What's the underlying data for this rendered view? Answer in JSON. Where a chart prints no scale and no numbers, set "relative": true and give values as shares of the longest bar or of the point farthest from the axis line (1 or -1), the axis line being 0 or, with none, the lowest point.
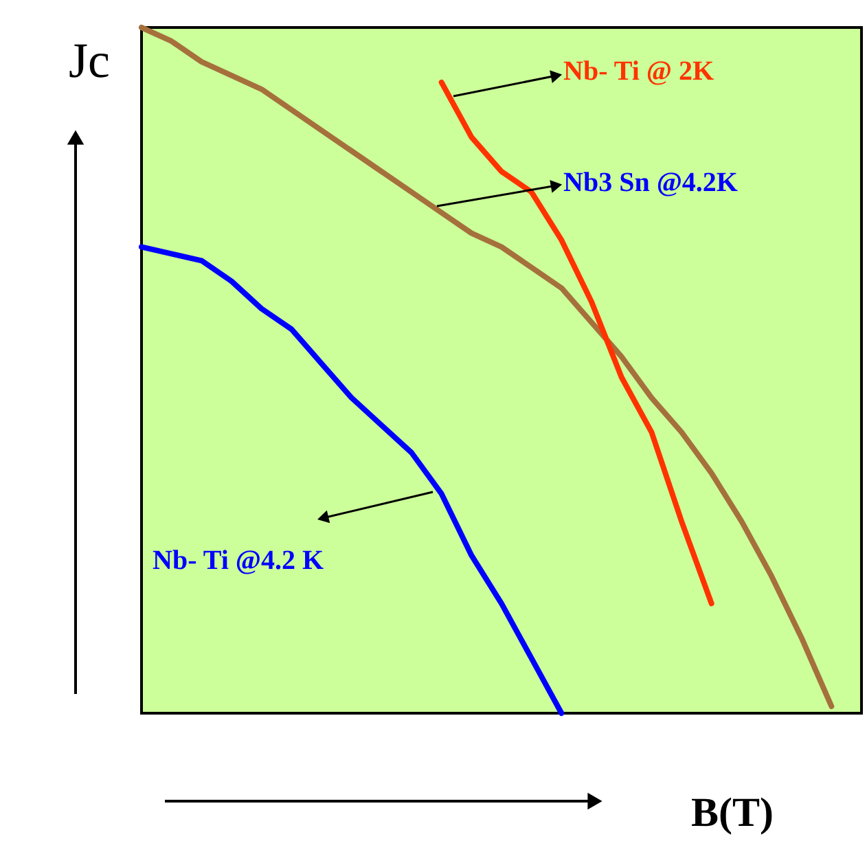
{
  "chart_data": {
    "type": "line",
    "relative": true,
    "xlabel": "B(T)",
    "ylabel": "Jc",
    "tick_labels": false,
    "grid": false,
    "categories": [
      null,
      null,
      null,
      null,
      null,
      null,
      null,
      null,
      null,
      null,
      null,
      null,
      null,
      null,
      null,
      null,
      null,
      null,
      null,
      null,
      null,
      null,
      null,
      null,
      null
    ],
    "series": [
      {
        "color": "#a5703c",
        "values": [
          1,
          0.98,
          0.95,
          0.93,
          0.91,
          0.88,
          0.85,
          0.82,
          0.79,
          0.76,
          0.73,
          0.7,
          0.68,
          0.65,
          0.62,
          0.57,
          0.52,
          0.46,
          0.41,
          0.35,
          0.28,
          0.2,
          0.11,
          0.01,
          null
        ]
      },
      {
        "color": "#ff3300",
        "values": [
          null,
          null,
          null,
          null,
          null,
          null,
          null,
          null,
          null,
          null,
          0.92,
          0.84,
          0.79,
          0.76,
          0.69,
          0.6,
          0.49,
          0.41,
          0.28,
          0.16,
          null,
          null,
          null,
          null,
          null
        ]
      },
      {
        "color": "#0000ff",
        "values": [
          0.68,
          0.67,
          0.66,
          0.63,
          0.59,
          0.56,
          0.51,
          0.46,
          0.42,
          0.38,
          0.32,
          0.23,
          0.16,
          0.08,
          0,
          null,
          null,
          null,
          null,
          null,
          null,
          null,
          null,
          null,
          null
        ]
      }
    ],
    "annotations": [
      "Nb- Ti @ 2K",
      "Nb3 Sn @4.2K",
      "Nb- Ti @4.2 K"
    ]
  }
}
